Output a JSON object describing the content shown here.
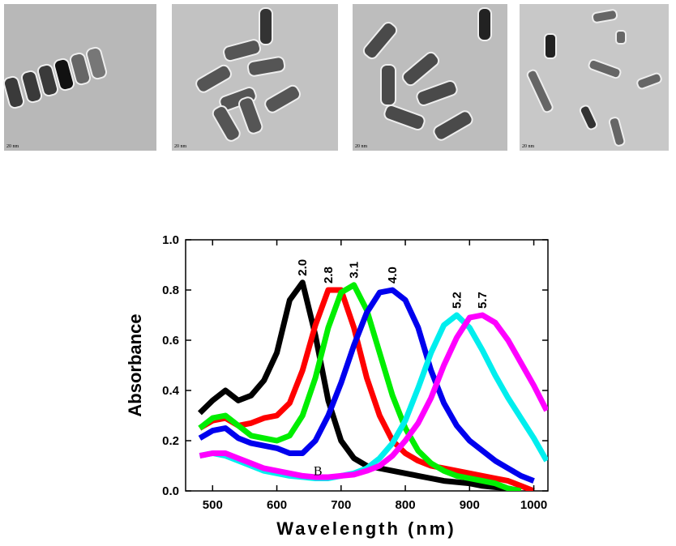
{
  "images": [
    {
      "scale_label": "20 nm"
    },
    {
      "scale_label": "20 nm"
    },
    {
      "scale_label": "20 nm"
    },
    {
      "scale_label": "20 nm"
    }
  ],
  "chart_data": {
    "type": "line",
    "x_label": "Wavelength (nm)",
    "y_label": "Absorbance",
    "x": [
      480,
      500,
      520,
      540,
      560,
      580,
      600,
      620,
      640,
      660,
      680,
      700,
      720,
      740,
      760,
      780,
      800,
      820,
      840,
      860,
      880,
      900,
      920,
      940,
      960,
      980,
      1000,
      1020
    ],
    "xlim": [
      458,
      1022
    ],
    "xticks": [
      500,
      600,
      700,
      800,
      900,
      1000
    ],
    "ylim": [
      0,
      1
    ],
    "yticks": [
      {
        "value": 0,
        "label": "0.0"
      },
      0.2,
      0.4,
      0.6,
      0.8,
      {
        "value": 1,
        "label": "1.0"
      }
    ],
    "annotations": [
      {
        "text": "B",
        "x": 664,
        "y": 0.075
      }
    ],
    "series": [
      {
        "name": "2.0",
        "color": "#000000",
        "values": [
          0.31,
          0.36,
          0.4,
          0.36,
          0.38,
          0.44,
          0.55,
          0.76,
          0.83,
          0.62,
          0.36,
          0.2,
          0.13,
          0.1,
          0.09,
          0.08,
          0.07,
          0.06,
          0.05,
          0.04,
          0.035,
          0.03,
          0.02,
          0.015,
          0.01,
          0.0,
          null,
          null
        ]
      },
      {
        "name": "2.8",
        "color": "#ff0000",
        "values": [
          0.25,
          0.28,
          0.29,
          0.26,
          0.27,
          0.29,
          0.3,
          0.35,
          0.48,
          0.66,
          0.8,
          0.8,
          0.65,
          0.45,
          0.3,
          0.2,
          0.15,
          0.12,
          0.1,
          0.09,
          0.08,
          0.07,
          0.06,
          0.05,
          0.04,
          0.02,
          0.0,
          null
        ]
      },
      {
        "name": "3.1",
        "color": "#00ee00",
        "values": [
          0.25,
          0.29,
          0.3,
          0.26,
          0.22,
          0.21,
          0.2,
          0.22,
          0.3,
          0.45,
          0.65,
          0.79,
          0.82,
          0.72,
          0.55,
          0.38,
          0.25,
          0.16,
          0.11,
          0.08,
          0.06,
          0.05,
          0.04,
          0.03,
          0.01,
          0.0,
          null,
          null
        ]
      },
      {
        "name": "4.0",
        "color": "#0000ee",
        "values": [
          0.21,
          0.24,
          0.25,
          0.21,
          0.19,
          0.18,
          0.17,
          0.15,
          0.15,
          0.2,
          0.3,
          0.43,
          0.58,
          0.71,
          0.79,
          0.8,
          0.76,
          0.65,
          0.48,
          0.35,
          0.26,
          0.2,
          0.16,
          0.12,
          0.09,
          0.06,
          0.04,
          null
        ]
      },
      {
        "name": "5.2",
        "color": "#00eeee",
        "values": [
          0.14,
          0.15,
          0.14,
          0.12,
          0.1,
          0.08,
          0.07,
          0.06,
          0.055,
          0.05,
          0.05,
          0.06,
          0.07,
          0.09,
          0.13,
          0.19,
          0.28,
          0.41,
          0.55,
          0.66,
          0.7,
          0.65,
          0.56,
          0.46,
          0.37,
          0.29,
          0.21,
          0.12
        ]
      },
      {
        "name": "5.7",
        "color": "#ff00ff",
        "values": [
          0.14,
          0.15,
          0.15,
          0.13,
          0.11,
          0.09,
          0.08,
          0.07,
          0.06,
          0.055,
          0.055,
          0.06,
          0.065,
          0.08,
          0.1,
          0.14,
          0.2,
          0.27,
          0.37,
          0.5,
          0.61,
          0.69,
          0.7,
          0.67,
          0.6,
          0.51,
          0.42,
          0.32
        ]
      }
    ]
  }
}
